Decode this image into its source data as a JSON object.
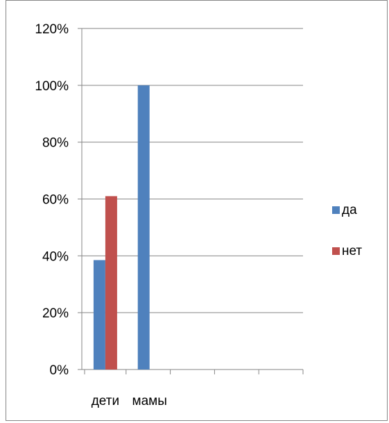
{
  "chart_data": {
    "type": "bar",
    "categories": [
      "дети",
      "мамы",
      "",
      "",
      ""
    ],
    "series": [
      {
        "name": "да",
        "values": [
          0.385,
          1.0,
          null,
          null,
          null
        ],
        "color": "#4F81BD"
      },
      {
        "name": "нет",
        "values": [
          0.61,
          null,
          null,
          null,
          null
        ],
        "color": "#C0504D"
      }
    ],
    "ylim": [
      0,
      1.2
    ],
    "yticks": [
      0,
      0.2,
      0.4,
      0.6,
      0.8,
      1.0,
      1.2
    ],
    "ytick_labels": [
      "0%",
      "20%",
      "40%",
      "60%",
      "80%",
      "100%",
      "120%"
    ],
    "grid": true,
    "legend_position": "right",
    "title": "",
    "xlabel": "",
    "ylabel": ""
  }
}
